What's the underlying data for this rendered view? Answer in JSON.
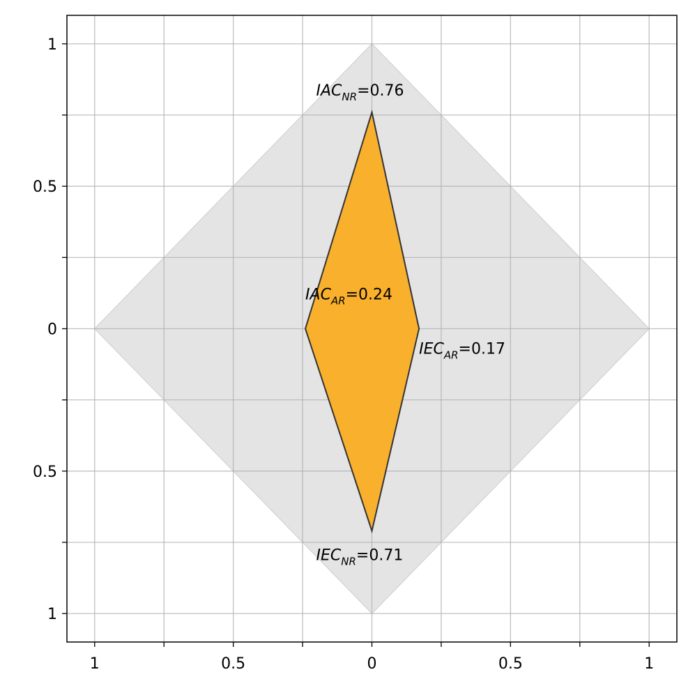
{
  "chart_data": {
    "type": "radar-diamond",
    "title": "",
    "xlabel": "",
    "ylabel": "",
    "xlim": [
      -1.1,
      1.1
    ],
    "ylim": [
      -1.1,
      1.1
    ],
    "grid": true,
    "x_ticks": [
      {
        "value": -1,
        "label": "1"
      },
      {
        "value": -0.5,
        "label": "0.5"
      },
      {
        "value": 0,
        "label": "0"
      },
      {
        "value": 0.5,
        "label": "0.5"
      },
      {
        "value": 1,
        "label": "1"
      }
    ],
    "y_ticks": [
      {
        "value": 1,
        "label": "1"
      },
      {
        "value": 0.5,
        "label": "0.5"
      },
      {
        "value": 0,
        "label": "0"
      },
      {
        "value": -0.5,
        "label": "0.5"
      },
      {
        "value": -1,
        "label": "1"
      }
    ],
    "minor_ticks": [
      -0.75,
      -0.25,
      0.25,
      0.75
    ],
    "background_diamond": {
      "max": 1,
      "color": "#e4e4e4"
    },
    "axes": [
      {
        "key": "IAC_NR",
        "base": "IAC",
        "sub": "NR",
        "direction": "up",
        "value": 0.76,
        "text": "=0.76"
      },
      {
        "key": "IEC_AR",
        "base": "IEC",
        "sub": "AR",
        "direction": "right",
        "value": 0.17,
        "text": "=0.17"
      },
      {
        "key": "IEC_NR",
        "base": "IEC",
        "sub": "NR",
        "direction": "down",
        "value": 0.71,
        "text": "=0.71"
      },
      {
        "key": "IAC_AR",
        "base": "IAC",
        "sub": "AR",
        "direction": "left",
        "value": 0.24,
        "text": "=0.24"
      }
    ],
    "fill_color": "#f9b02d",
    "edge_color": "#333333"
  }
}
